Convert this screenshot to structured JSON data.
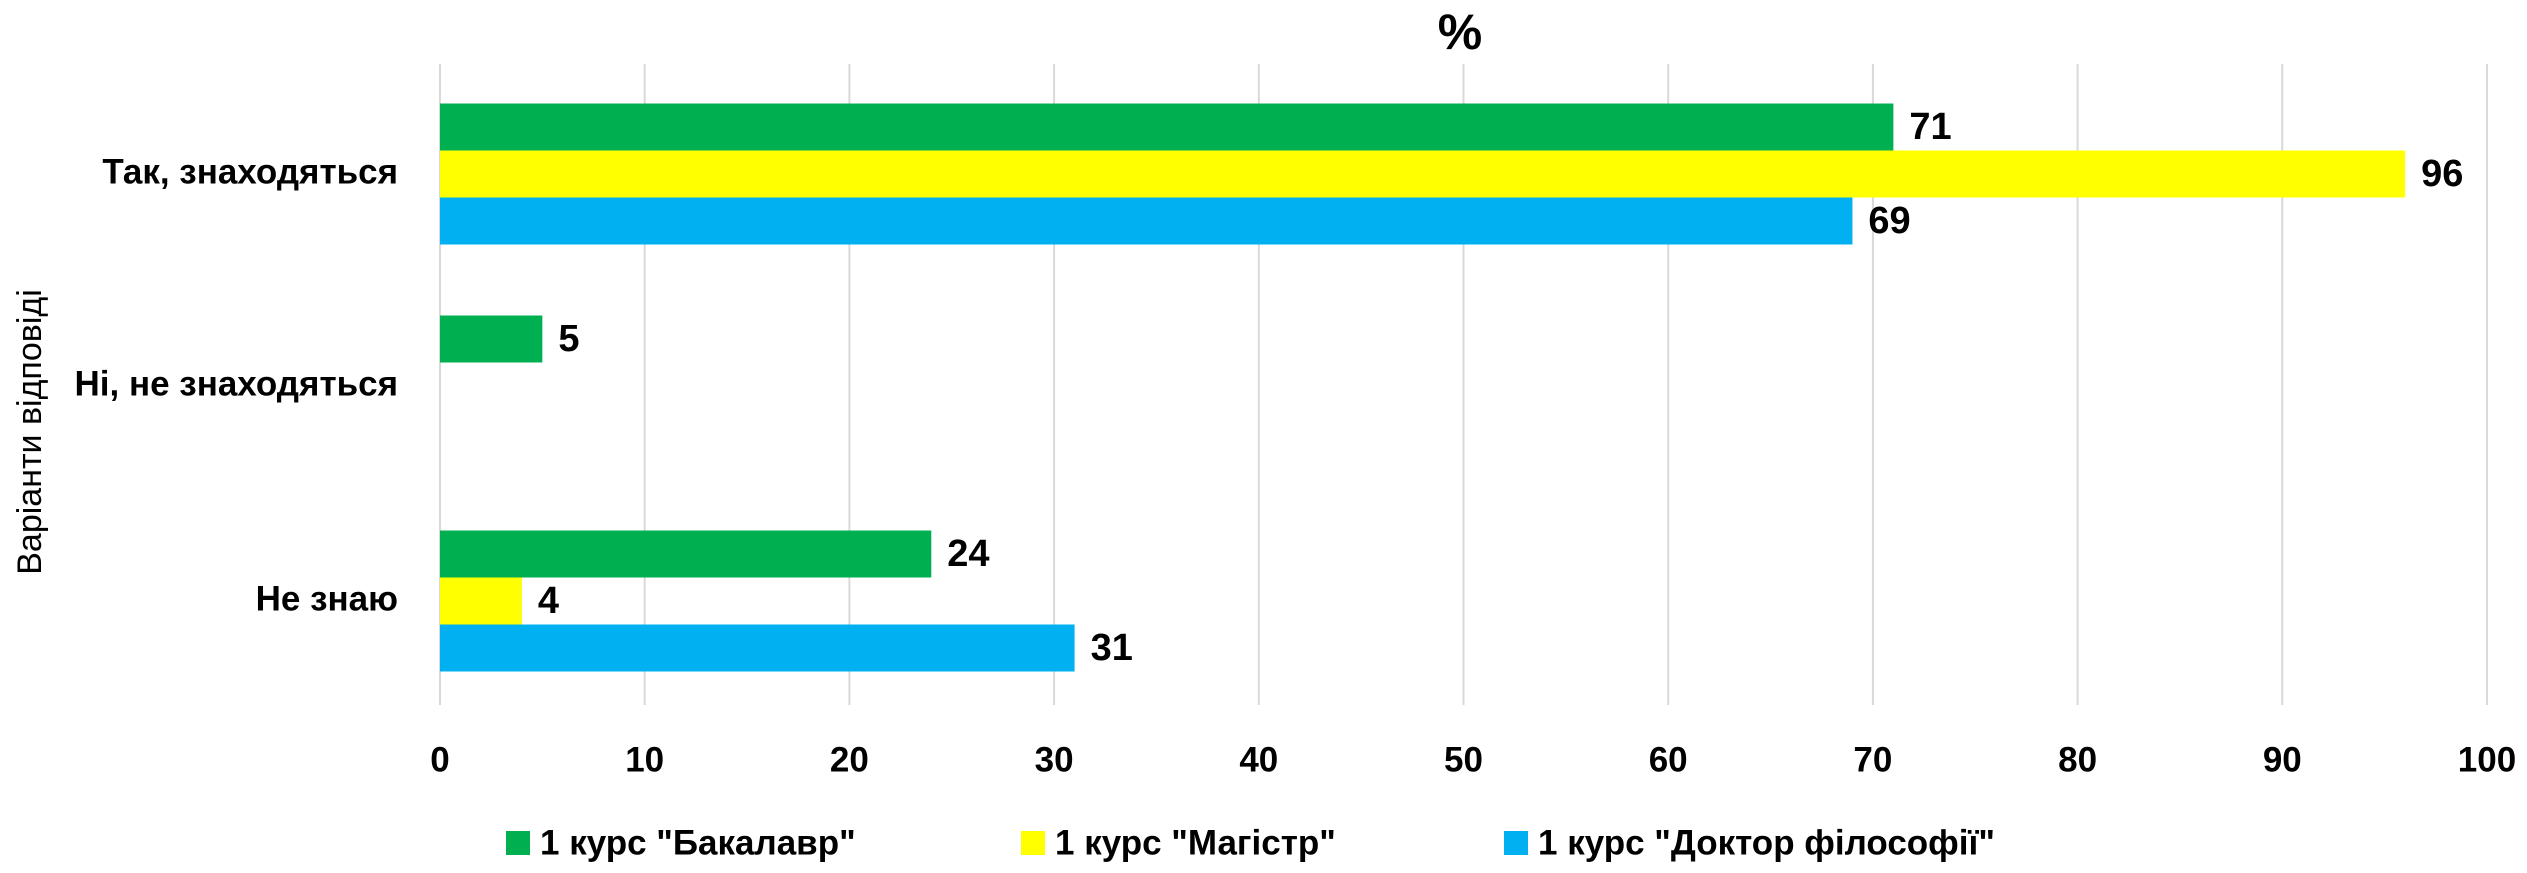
{
  "chart_data": {
    "type": "bar",
    "orientation": "horizontal",
    "title": "%",
    "y_label": "Варіанти відповіді",
    "categories": [
      "Так, знаходяться",
      "Ні, не знаходяться",
      "Не знаю"
    ],
    "series": [
      {
        "name": "1 курс \"Бакалавр\"",
        "color": "#00b050",
        "values": [
          71,
          5,
          24
        ]
      },
      {
        "name": "1 курс \"Магістр\"",
        "color": "#ffff00",
        "values": [
          96,
          null,
          4
        ]
      },
      {
        "name": "1 курс \"Доктор філософії\"",
        "color": "#00b0f0",
        "values": [
          69,
          null,
          31
        ]
      }
    ],
    "xlim": [
      0,
      100
    ],
    "xticks": [
      0,
      10,
      20,
      30,
      40,
      50,
      60,
      70,
      80,
      90,
      100
    ],
    "grid": true,
    "legend": "bottom"
  }
}
